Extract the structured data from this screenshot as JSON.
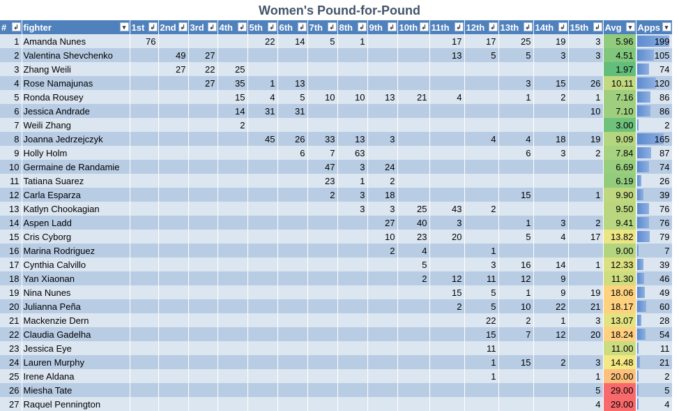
{
  "title": "Women's Pound-for-Pound",
  "columns": [
    "#",
    "fighter",
    "1st",
    "2nd",
    "3rd",
    "4th",
    "5th",
    "6th",
    "7th",
    "8th",
    "9th",
    "10th",
    "11th",
    "12th",
    "13th",
    "14th",
    "15th",
    "Avg",
    "Apps"
  ],
  "filter_icon": "dropdown-sort-icon",
  "colors": {
    "header": "#4F81BD",
    "row_light": "#DCE6F1",
    "row_dark": "#B8CCE4",
    "bar": "#5B8BD0",
    "avg_good": "#63BE7B",
    "avg_mid": "#FFEB84",
    "avg_bad": "#F8696B"
  },
  "rows": [
    {
      "rank": "1",
      "fighter": "Amanda Nunes",
      "ranks": [
        "76",
        "",
        "",
        "",
        "22",
        "14",
        "5",
        "1",
        "",
        "",
        "17",
        "17",
        "25",
        "19",
        "3"
      ],
      "avg": "5.96",
      "apps": "199"
    },
    {
      "rank": "2",
      "fighter": "Valentina Shevchenko",
      "ranks": [
        "",
        "49",
        "27",
        "",
        "",
        "",
        "",
        "",
        "",
        "",
        "13",
        "5",
        "5",
        "3",
        "3"
      ],
      "avg": "4.51",
      "apps": "105"
    },
    {
      "rank": "3",
      "fighter": "Zhang Weili",
      "ranks": [
        "",
        "27",
        "22",
        "25",
        "",
        "",
        "",
        "",
        "",
        "",
        "",
        "",
        "",
        "",
        ""
      ],
      "avg": "1.97",
      "apps": "74"
    },
    {
      "rank": "4",
      "fighter": "Rose Namajunas",
      "ranks": [
        "",
        "",
        "27",
        "35",
        "1",
        "13",
        "",
        "",
        "",
        "",
        "",
        "",
        "3",
        "15",
        "26"
      ],
      "avg": "10.11",
      "apps": "120"
    },
    {
      "rank": "5",
      "fighter": "Ronda Rousey",
      "ranks": [
        "",
        "",
        "",
        "15",
        "4",
        "5",
        "10",
        "10",
        "13",
        "21",
        "4",
        "",
        "1",
        "2",
        "1"
      ],
      "avg": "7.16",
      "apps": "86"
    },
    {
      "rank": "6",
      "fighter": "Jessica Andrade",
      "ranks": [
        "",
        "",
        "",
        "14",
        "31",
        "31",
        "",
        "",
        "",
        "",
        "",
        "",
        "",
        "",
        "10"
      ],
      "avg": "7.10",
      "apps": "86"
    },
    {
      "rank": "7",
      "fighter": "Weili Zhang",
      "ranks": [
        "",
        "",
        "",
        "2",
        "",
        "",
        "",
        "",
        "",
        "",
        "",
        "",
        "",
        "",
        ""
      ],
      "avg": "3.00",
      "apps": "2"
    },
    {
      "rank": "8",
      "fighter": "Joanna Jedrzejczyk",
      "ranks": [
        "",
        "",
        "",
        "",
        "45",
        "26",
        "33",
        "13",
        "3",
        "",
        "",
        "4",
        "4",
        "18",
        "19"
      ],
      "avg": "9.09",
      "apps": "165"
    },
    {
      "rank": "9",
      "fighter": "Holly Holm",
      "ranks": [
        "",
        "",
        "",
        "",
        "",
        "6",
        "7",
        "63",
        "",
        "",
        "",
        "",
        "6",
        "3",
        "2"
      ],
      "avg": "7.84",
      "apps": "87"
    },
    {
      "rank": "10",
      "fighter": "Germaine de Randamie",
      "ranks": [
        "",
        "",
        "",
        "",
        "",
        "",
        "47",
        "3",
        "24",
        "",
        "",
        "",
        "",
        "",
        ""
      ],
      "avg": "6.69",
      "apps": "74"
    },
    {
      "rank": "11",
      "fighter": "Tatiana Suarez",
      "ranks": [
        "",
        "",
        "",
        "",
        "",
        "",
        "23",
        "1",
        "2",
        "",
        "",
        "",
        "",
        "",
        ""
      ],
      "avg": "6.19",
      "apps": "26"
    },
    {
      "rank": "12",
      "fighter": "Carla Esparza",
      "ranks": [
        "",
        "",
        "",
        "",
        "",
        "",
        "2",
        "3",
        "18",
        "",
        "",
        "",
        "15",
        "",
        "1"
      ],
      "avg": "9.90",
      "apps": "39"
    },
    {
      "rank": "13",
      "fighter": "Katlyn Chookagian",
      "ranks": [
        "",
        "",
        "",
        "",
        "",
        "",
        "",
        "3",
        "3",
        "25",
        "43",
        "2",
        "",
        "",
        ""
      ],
      "avg": "9.50",
      "apps": "76"
    },
    {
      "rank": "14",
      "fighter": "Aspen Ladd",
      "ranks": [
        "",
        "",
        "",
        "",
        "",
        "",
        "",
        "",
        "27",
        "40",
        "3",
        "",
        "1",
        "3",
        "2"
      ],
      "avg": "9.41",
      "apps": "76"
    },
    {
      "rank": "15",
      "fighter": "Cris Cyborg",
      "ranks": [
        "",
        "",
        "",
        "",
        "",
        "",
        "",
        "",
        "10",
        "23",
        "20",
        "",
        "5",
        "4",
        "17"
      ],
      "avg": "13.82",
      "apps": "79"
    },
    {
      "rank": "16",
      "fighter": "Marina Rodriguez",
      "ranks": [
        "",
        "",
        "",
        "",
        "",
        "",
        "",
        "",
        "2",
        "4",
        "",
        "1",
        "",
        "",
        ""
      ],
      "avg": "9.00",
      "apps": "7"
    },
    {
      "rank": "17",
      "fighter": "Cynthia Calvillo",
      "ranks": [
        "",
        "",
        "",
        "",
        "",
        "",
        "",
        "",
        "",
        "5",
        "",
        "3",
        "16",
        "14",
        "1"
      ],
      "avg": "12.33",
      "apps": "39"
    },
    {
      "rank": "18",
      "fighter": "Yan Xiaonan",
      "ranks": [
        "",
        "",
        "",
        "",
        "",
        "",
        "",
        "",
        "",
        "2",
        "12",
        "11",
        "12",
        "9",
        ""
      ],
      "avg": "11.30",
      "apps": "46"
    },
    {
      "rank": "19",
      "fighter": "Nina Nunes",
      "ranks": [
        "",
        "",
        "",
        "",
        "",
        "",
        "",
        "",
        "",
        "",
        "15",
        "5",
        "1",
        "9",
        "19"
      ],
      "avg": "18.06",
      "apps": "49"
    },
    {
      "rank": "20",
      "fighter": "Julianna Peña",
      "ranks": [
        "",
        "",
        "",
        "",
        "",
        "",
        "",
        "",
        "",
        "",
        "2",
        "5",
        "10",
        "22",
        "21"
      ],
      "avg": "18.17",
      "apps": "60"
    },
    {
      "rank": "21",
      "fighter": "Mackenzie Dern",
      "ranks": [
        "",
        "",
        "",
        "",
        "",
        "",
        "",
        "",
        "",
        "",
        "",
        "22",
        "2",
        "1",
        "3"
      ],
      "avg": "13.07",
      "apps": "28"
    },
    {
      "rank": "22",
      "fighter": "Claudia Gadelha",
      "ranks": [
        "",
        "",
        "",
        "",
        "",
        "",
        "",
        "",
        "",
        "",
        "",
        "15",
        "7",
        "12",
        "20"
      ],
      "avg": "18.24",
      "apps": "54"
    },
    {
      "rank": "23",
      "fighter": "Jessica Eye",
      "ranks": [
        "",
        "",
        "",
        "",
        "",
        "",
        "",
        "",
        "",
        "",
        "",
        "11",
        "",
        "",
        ""
      ],
      "avg": "11.00",
      "apps": "11"
    },
    {
      "rank": "24",
      "fighter": "Lauren Murphy",
      "ranks": [
        "",
        "",
        "",
        "",
        "",
        "",
        "",
        "",
        "",
        "",
        "",
        "1",
        "15",
        "2",
        "3"
      ],
      "avg": "14.48",
      "apps": "21"
    },
    {
      "rank": "25",
      "fighter": "Irene Aldana",
      "ranks": [
        "",
        "",
        "",
        "",
        "",
        "",
        "",
        "",
        "",
        "",
        "",
        "1",
        "",
        "",
        "1"
      ],
      "avg": "20.00",
      "apps": "2"
    },
    {
      "rank": "26",
      "fighter": "Miesha Tate",
      "ranks": [
        "",
        "",
        "",
        "",
        "",
        "",
        "",
        "",
        "",
        "",
        "",
        "",
        "",
        "",
        "5"
      ],
      "avg": "29.00",
      "apps": "5"
    },
    {
      "rank": "27",
      "fighter": "Raquel Pennington",
      "ranks": [
        "",
        "",
        "",
        "",
        "",
        "",
        "",
        "",
        "",
        "",
        "",
        "",
        "",
        "",
        "4"
      ],
      "avg": "29.00",
      "apps": "4"
    }
  ]
}
